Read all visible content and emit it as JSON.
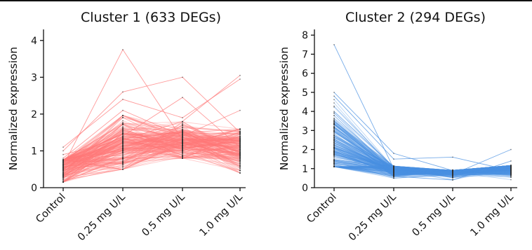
{
  "chart_data": [
    {
      "type": "line",
      "title": "Cluster 1 (633 DEGs)",
      "xlabel": "",
      "ylabel": "Normalized expression",
      "categories": [
        "Control",
        "0.25 mg U/L",
        "0.5 mg U/L",
        "1.0 mg U/L"
      ],
      "ylim": [
        0,
        4.3
      ],
      "yticks": [
        0,
        1,
        2,
        3,
        4
      ],
      "color": "#ff7a7a",
      "n_genes": 633,
      "typical_profile": [
        0.6,
        1.15,
        1.25,
        1.05
      ],
      "highlighted_profiles": [
        [
          0.6,
          3.75,
          1.3,
          1.2
        ],
        [
          1.0,
          2.6,
          3.0,
          1.5
        ],
        [
          0.9,
          1.3,
          1.8,
          3.05
        ],
        [
          0.8,
          2.1,
          1.4,
          2.1
        ],
        [
          0.2,
          0.5,
          1.2,
          0.9
        ],
        [
          0.5,
          1.4,
          2.45,
          1.1
        ],
        [
          1.1,
          2.4,
          1.9,
          2.95
        ]
      ],
      "value_ranges": {
        "Control": [
          0.15,
          1.25
        ],
        "0.25 mg U/L": [
          0.5,
          3.75
        ],
        "0.5 mg U/L": [
          0.8,
          3.0
        ],
        "1.0 mg U/L": [
          0.4,
          3.05
        ]
      }
    },
    {
      "type": "line",
      "title": "Cluster 2 (294 DEGs)",
      "xlabel": "",
      "ylabel": "Normalized expression",
      "categories": [
        "Control",
        "0.25 mg U/L",
        "0.5 mg U/L",
        "1.0 mg U/L"
      ],
      "ylim": [
        0,
        8.3
      ],
      "yticks": [
        0,
        1,
        2,
        3,
        4,
        5,
        6,
        7,
        8
      ],
      "color": "#4a90e2",
      "n_genes": 294,
      "typical_profile": [
        2.0,
        0.9,
        0.85,
        1.0
      ],
      "highlighted_profiles": [
        [
          7.5,
          1.0,
          0.9,
          1.1
        ],
        [
          5.0,
          1.8,
          0.9,
          1.0
        ],
        [
          4.8,
          1.5,
          1.6,
          0.9
        ],
        [
          4.0,
          1.1,
          0.7,
          2.0
        ],
        [
          1.2,
          0.6,
          0.4,
          1.4
        ]
      ],
      "value_ranges": {
        "Control": [
          1.1,
          7.5
        ],
        "0.25 mg U/L": [
          0.5,
          1.9
        ],
        "0.5 mg U/L": [
          0.35,
          1.6
        ],
        "1.0 mg U/L": [
          0.4,
          2.1
        ]
      }
    }
  ]
}
